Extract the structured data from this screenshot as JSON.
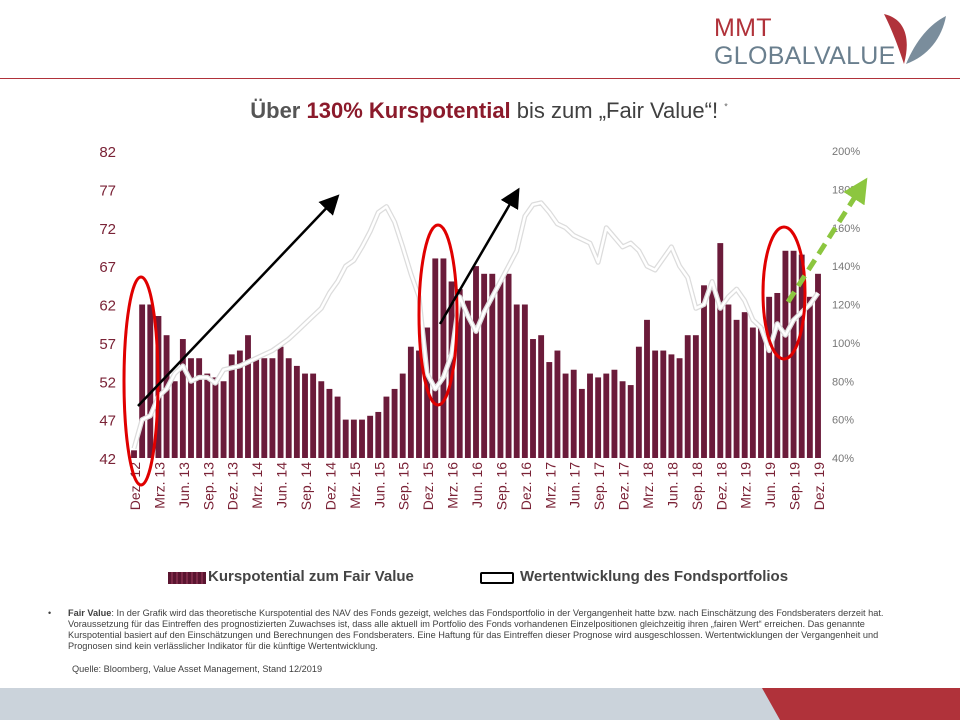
{
  "logo": {
    "line1": "MMT",
    "line2": "GLOBALVALUE"
  },
  "title": {
    "part1": "Über ",
    "part2": "130% Kurspotential",
    "part3": " bis zum „Fair Value“!",
    "star": "*"
  },
  "legend": {
    "bars": "Kurspotential zum Fair Value",
    "line": "Wertentwicklung des Fondsportfolios"
  },
  "note": {
    "bullet": "•",
    "label": "Fair Value",
    "text": ": In der Grafik wird das theoretische Kurspotential des NAV des Fonds gezeigt, welches das Fondsportfolio in der Vergangenheit hatte bzw. nach Einschätzung des Fondsberaters derzeit hat. Voraussetzung für das Eintreffen des prognostizierten Zuwachses ist, dass alle aktuell im Portfolio des Fonds vorhandenen Einzelpositionen gleichzeitig ihren „fairen Wert“ erreichen. Das genannte Kurspotential basiert auf den Einschätzungen und Berechnungen des Fondsberaters. Eine Haftung für das Eintreffen dieser Prognose wird ausgeschlossen. Wertentwicklungen der Vergangenheit und Prognosen sind kein verlässlicher Indikator für die künftige Wertentwicklung."
  },
  "source": "Quelle: Bloomberg, Value Asset Management, Stand 12/2019",
  "colors": {
    "brand_red": "#b0323a",
    "bar": "#6b1b3a",
    "highlight": "#e00000",
    "forecast": "#8cc63f"
  },
  "chart_data": {
    "type": "bar",
    "title": "",
    "categories": [
      "Dez. 12",
      "Jan. 13",
      "Feb. 13",
      "Mrz. 13",
      "Apr. 13",
      "Mai 13",
      "Jun. 13",
      "Jul. 13",
      "Aug. 13",
      "Sep. 13",
      "Okt. 13",
      "Nov. 13",
      "Dez. 13",
      "Jan. 14",
      "Feb. 14",
      "Mrz. 14",
      "Apr. 14",
      "Mai 14",
      "Jun. 14",
      "Jul. 14",
      "Aug. 14",
      "Sep. 14",
      "Okt. 14",
      "Nov. 14",
      "Dez. 14",
      "Jan. 15",
      "Feb. 15",
      "Mrz. 15",
      "Apr. 15",
      "Mai 15",
      "Jun. 15",
      "Jul. 15",
      "Aug. 15",
      "Sep. 15",
      "Okt. 15",
      "Nov. 15",
      "Dez. 15",
      "Jan. 16",
      "Feb. 16",
      "Mrz. 16",
      "Apr. 16",
      "Mai 16",
      "Jun. 16",
      "Jul. 16",
      "Aug. 16",
      "Sep. 16",
      "Okt. 16",
      "Nov. 16",
      "Dez. 16",
      "Jan. 17",
      "Feb. 17",
      "Mrz. 17",
      "Apr. 17",
      "Mai 17",
      "Jun. 17",
      "Jul. 17",
      "Aug. 17",
      "Sep. 17",
      "Okt. 17",
      "Nov. 17",
      "Dez. 17",
      "Jan. 18",
      "Feb. 18",
      "Mrz. 18",
      "Apr. 18",
      "Mai 18",
      "Jun. 18",
      "Jul. 18",
      "Aug. 18",
      "Sep. 18",
      "Okt. 18",
      "Nov. 18",
      "Dez. 18",
      "Jan. 19",
      "Feb. 19",
      "Mrz. 19",
      "Apr. 19",
      "Mai 19",
      "Jun. 19",
      "Jul. 19",
      "Aug. 19",
      "Sep. 19",
      "Okt. 19",
      "Nov. 19",
      "Dez. 19"
    ],
    "tick_labels": [
      "Dez. 12",
      "Mrz. 13",
      "Jun. 13",
      "Sep. 13",
      "Dez. 13",
      "Mrz. 14",
      "Jun. 14",
      "Sep. 14",
      "Dez. 14",
      "Mrz. 15",
      "Jun. 15",
      "Sep. 15",
      "Dez. 15",
      "Mrz. 16",
      "Jun. 16",
      "Sep. 16",
      "Dez. 16",
      "Mrz. 17",
      "Jun. 17",
      "Sep. 17",
      "Dez. 17",
      "Mrz. 18",
      "Jun. 18",
      "Sep. 18",
      "Dez. 18",
      "Mrz. 19",
      "Jun. 19",
      "Sep. 19",
      "Dez. 19"
    ],
    "y_left": {
      "ticks": [
        "82",
        "77",
        "72",
        "67",
        "62",
        "57",
        "52",
        "47",
        "42"
      ],
      "range": [
        42,
        82
      ]
    },
    "y_right": {
      "ticks": [
        "200%",
        "180%",
        "160%",
        "140%",
        "120%",
        "100%",
        "80%",
        "60%",
        "40%"
      ],
      "range": [
        40,
        200
      ]
    },
    "series": [
      {
        "name": "Kurspotential zum Fair Value",
        "type": "bar",
        "axis": "left",
        "values": [
          43,
          62,
          62,
          60.5,
          58,
          52,
          57.5,
          55,
          55,
          53,
          52.5,
          52,
          55.5,
          56,
          58,
          55,
          55,
          55,
          56.5,
          55,
          54,
          53,
          53,
          52,
          51,
          50,
          47,
          47,
          47,
          47.5,
          48,
          50,
          51,
          53,
          56.5,
          56,
          59,
          68,
          68,
          65,
          64,
          62.5,
          67,
          66,
          66,
          65,
          66,
          62,
          62,
          57.5,
          58,
          54.5,
          56,
          53,
          53.5,
          51,
          53,
          52.5,
          53,
          53.5,
          52,
          51.5,
          56.5,
          60,
          56,
          56,
          55.5,
          55,
          58,
          58,
          64.5,
          64,
          70,
          62,
          60,
          61,
          59,
          59,
          63,
          63.5,
          69,
          69,
          68.5,
          63,
          66
        ]
      },
      {
        "name": "Wertentwicklung des Fondsportfolios",
        "type": "line",
        "axis": "right",
        "values": [
          45,
          60,
          62,
          72,
          76,
          84,
          88,
          80,
          82,
          82,
          79,
          86,
          87,
          88,
          90,
          92,
          94,
          96,
          99,
          102,
          106,
          110,
          114,
          118,
          126,
          132,
          140,
          143,
          150,
          158,
          168,
          171,
          163,
          150,
          136,
          124,
          84,
          76,
          82,
          94,
          124,
          114,
          106,
          116,
          124,
          132,
          140,
          148,
          166,
          172,
          173,
          168,
          162,
          160,
          156,
          154,
          152,
          142,
          160,
          155,
          150,
          152,
          148,
          140,
          138,
          144,
          150,
          140,
          134,
          118,
          120,
          132,
          118,
          124,
          128,
          122,
          112,
          108,
          96,
          110,
          104,
          112,
          116,
          120,
          126
        ]
      }
    ],
    "annotations": [
      {
        "type": "ellipse",
        "color": "red",
        "around": "Dez. 12"
      },
      {
        "type": "ellipse",
        "color": "red",
        "around": "Feb. 16"
      },
      {
        "type": "ellipse",
        "color": "red",
        "around": "Sep. 19"
      },
      {
        "type": "arrow",
        "color": "black",
        "from": "Jan. 13",
        "to": "Jun. 15"
      },
      {
        "type": "arrow",
        "color": "black",
        "from": "Feb. 16",
        "to": "Nov. 16"
      },
      {
        "type": "arrow",
        "color": "green-dashed",
        "from": "Okt. 19",
        "to": "Dez. 19"
      }
    ],
    "grid": false,
    "legend_position": "bottom"
  }
}
